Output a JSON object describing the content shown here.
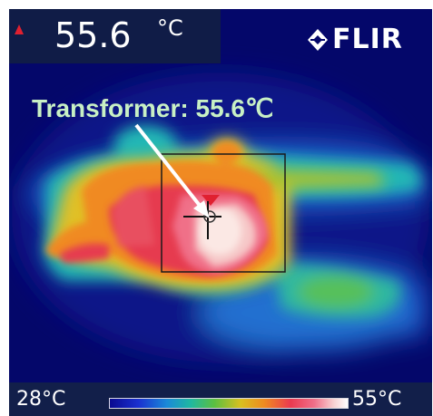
{
  "camera": {
    "spot_temperature": "55.6",
    "spot_unit": "°C",
    "brand": "FLIR"
  },
  "annotation": {
    "text": "Transformer: 55.6℃"
  },
  "scale": {
    "min_label": "28°C",
    "max_label": "55°C"
  },
  "colors": {
    "background": "#04076a",
    "panel": "#101c47",
    "annotation_text": "#c8f0c4",
    "alarm_marker": "#e02030"
  },
  "icons": {
    "brand_logo": "flir-logo-icon",
    "alarm": "triangle-up-icon",
    "crosshair": "crosshair-icon",
    "arrow": "arrow-icon"
  }
}
